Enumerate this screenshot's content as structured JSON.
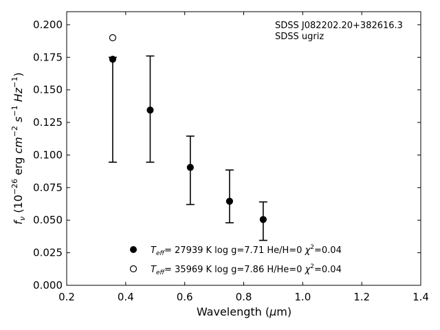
{
  "chart_data": {
    "type": "scatter",
    "xlabel": "Wavelength (μm)",
    "ylabel": "f_ν (10^-26 erg cm^-2 s^-1 Hz^-1)",
    "xlim": [
      0.2,
      1.4
    ],
    "ylim": [
      0.0,
      0.21
    ],
    "x_ticks": [
      "0.2",
      "0.4",
      "0.6",
      "0.8",
      "1.0",
      "1.2",
      "1.4"
    ],
    "y_ticks": [
      "0.000",
      "0.025",
      "0.050",
      "0.075",
      "0.100",
      "0.125",
      "0.150",
      "0.175",
      "0.200"
    ],
    "grid": false,
    "legend_position": "bottom-center",
    "annotations": [
      "SDSS J082202.20+382616.3",
      "SDSS ugriz"
    ],
    "series": [
      {
        "marker": "filled-circle",
        "legend_label": "T_eff= 27939 K  log g=7.71  He/H=0  χ²=0.04",
        "points": [
          {
            "x": 0.356,
            "y": 0.1735
          },
          {
            "x": 0.483,
            "y": 0.1345
          },
          {
            "x": 0.619,
            "y": 0.0905
          },
          {
            "x": 0.752,
            "y": 0.0645
          },
          {
            "x": 0.866,
            "y": 0.0505
          }
        ]
      },
      {
        "marker": "open-circle",
        "legend_label": "T_eff= 35969 K  log g=7.86  H/He=0  χ²=0.04",
        "points": [
          {
            "x": 0.356,
            "y": 0.19
          }
        ]
      }
    ],
    "error_bars": [
      {
        "x": 0.356,
        "low": 0.0945,
        "high": 0.175
      },
      {
        "x": 0.483,
        "low": 0.0945,
        "high": 0.176
      },
      {
        "x": 0.619,
        "low": 0.062,
        "high": 0.1145
      },
      {
        "x": 0.752,
        "low": 0.048,
        "high": 0.0885
      },
      {
        "x": 0.866,
        "low": 0.0345,
        "high": 0.064
      }
    ]
  }
}
